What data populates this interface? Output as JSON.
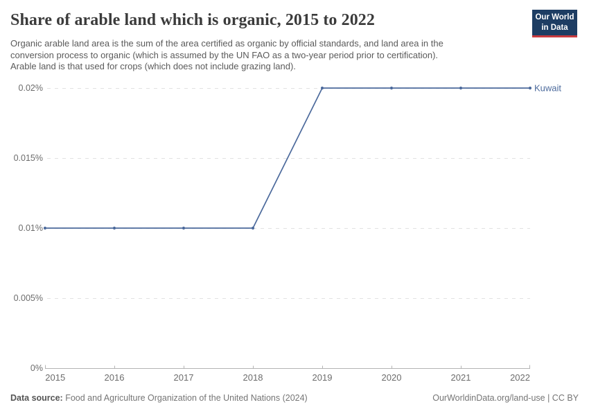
{
  "header": {
    "title": "Share of arable land which is organic, 2015 to 2022",
    "subtitle_lines": [
      "Organic arable land area is the sum of the area certified as organic by official standards, and land area in the",
      "conversion process to organic (which is assumed by the UN FAO as a two-year period prior to certification).",
      "Arable land is that used for crops (which does not include grazing land)."
    ],
    "logo": {
      "line1": "Our World",
      "line2": "in Data"
    }
  },
  "chart_data": {
    "type": "line",
    "title": "Share of arable land which is organic, 2015 to 2022",
    "x": [
      2015,
      2016,
      2017,
      2018,
      2019,
      2020,
      2021,
      2022
    ],
    "series": [
      {
        "name": "Kuwait",
        "color": "#4C6A9C",
        "values": [
          0.01,
          0.01,
          0.01,
          0.01,
          0.02,
          0.02,
          0.02,
          0.02
        ]
      }
    ],
    "y_ticks": [
      {
        "label": "0%",
        "value": 0
      },
      {
        "label": "0.005%",
        "value": 0.005
      },
      {
        "label": "0.01%",
        "value": 0.01
      },
      {
        "label": "0.015%",
        "value": 0.015
      },
      {
        "label": "0.02%",
        "value": 0.02
      }
    ],
    "ylim": [
      0,
      0.02
    ],
    "xlabel": "",
    "ylabel": "",
    "grid": "horizontal-dashed",
    "legend_position": "end-of-line-label"
  },
  "footer": {
    "datasource_label": "Data source:",
    "datasource_text": " Food and Agriculture Organization of the United Nations (2024)",
    "right_text": "OurWorldinData.org/land-use | CC BY"
  },
  "colors": {
    "series_blue": "#4C6A9C",
    "logo_navy": "#1d3d63",
    "logo_red": "#c93b3f",
    "gridline": "#e2e2e2",
    "axis": "#b3b3b3",
    "tick_text": "#6c6c6c",
    "title_text": "#3b3b3b",
    "subtitle_text": "#5a5a5a"
  }
}
